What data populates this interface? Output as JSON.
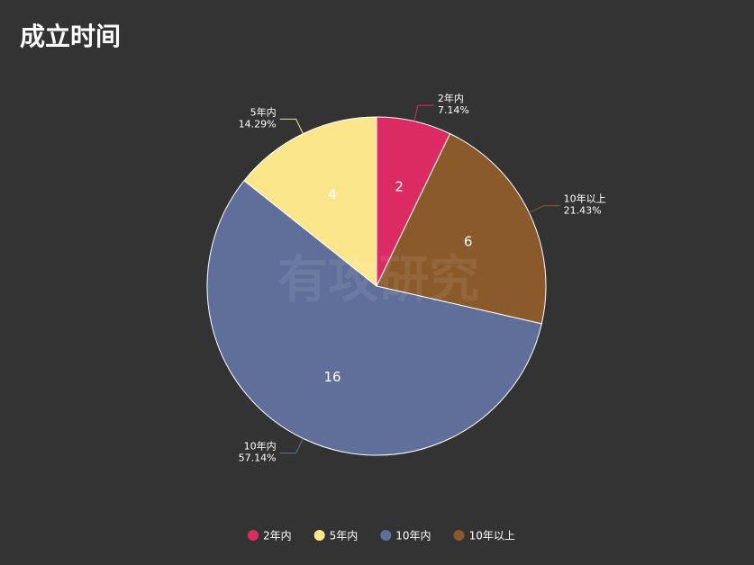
{
  "chart_data": {
    "type": "pie",
    "title": "成立时间",
    "watermark": "有攻研究",
    "categories": [
      "2年内",
      "10年以上",
      "10年内",
      "5年内"
    ],
    "values": [
      2,
      6,
      16,
      4
    ],
    "value_labels": [
      "7.14%",
      "21.43%",
      "57.14%",
      "14.29%"
    ],
    "colors": [
      "#dc2b63",
      "#8b5a2b",
      "#5f6f99",
      "#fce68c"
    ],
    "legend": [
      "2年内",
      "5年内",
      "10年内",
      "10年以上"
    ]
  }
}
